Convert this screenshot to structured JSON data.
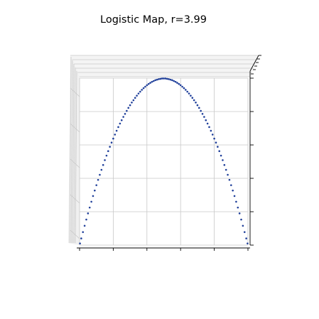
{
  "chart_data": {
    "type": "scatter",
    "projection": "3d",
    "title": "Logistic Map, r=3.99",
    "xlabel": "",
    "ylabel": "",
    "zlabel": "",
    "r": 3.99,
    "grid": true,
    "tick_labels_visible": false,
    "marker_color": "#1f3f9a",
    "axis_color": "#000000",
    "grid_color": "#c8c8c8",
    "series": [
      {
        "x": [
          0.0025,
          0.01,
          0.02,
          0.03,
          0.04,
          0.05,
          0.06,
          0.07,
          0.08,
          0.09,
          0.1,
          0.11,
          0.12,
          0.13,
          0.14,
          0.15,
          0.16,
          0.17,
          0.18,
          0.19,
          0.2,
          0.21,
          0.22,
          0.23,
          0.24,
          0.25,
          0.26,
          0.27,
          0.28,
          0.29,
          0.3,
          0.31,
          0.32,
          0.33,
          0.34,
          0.35,
          0.36,
          0.37,
          0.38,
          0.39,
          0.4,
          0.41,
          0.42,
          0.43,
          0.44,
          0.45,
          0.46,
          0.47,
          0.48,
          0.49,
          0.5,
          0.51,
          0.52,
          0.53,
          0.54,
          0.55,
          0.56,
          0.57,
          0.58,
          0.59,
          0.6,
          0.61,
          0.62,
          0.63,
          0.64,
          0.65,
          0.66,
          0.67,
          0.68,
          0.69,
          0.7,
          0.71,
          0.72,
          0.73,
          0.74,
          0.75,
          0.76,
          0.77,
          0.78,
          0.79,
          0.8,
          0.81,
          0.82,
          0.83,
          0.84,
          0.85,
          0.86,
          0.87,
          0.88,
          0.89,
          0.9,
          0.91,
          0.92,
          0.93,
          0.94,
          0.95,
          0.96,
          0.97,
          0.98,
          0.99,
          0.9975
        ],
        "y": [
          0.01,
          0.04,
          0.078,
          0.116,
          0.153,
          0.19,
          0.225,
          0.26,
          0.294,
          0.327,
          0.359,
          0.391,
          0.421,
          0.451,
          0.48,
          0.509,
          0.536,
          0.563,
          0.589,
          0.614,
          0.638,
          0.662,
          0.685,
          0.707,
          0.728,
          0.748,
          0.768,
          0.786,
          0.804,
          0.822,
          0.838,
          0.854,
          0.868,
          0.882,
          0.895,
          0.908,
          0.919,
          0.93,
          0.94,
          0.949,
          0.958,
          0.965,
          0.972,
          0.978,
          0.983,
          0.988,
          0.991,
          0.994,
          0.996,
          0.998,
          0.998,
          0.998,
          0.996,
          0.994,
          0.991,
          0.988,
          0.983,
          0.978,
          0.972,
          0.965,
          0.958,
          0.949,
          0.94,
          0.93,
          0.919,
          0.908,
          0.895,
          0.882,
          0.868,
          0.854,
          0.838,
          0.822,
          0.804,
          0.786,
          0.768,
          0.748,
          0.728,
          0.707,
          0.685,
          0.662,
          0.638,
          0.614,
          0.589,
          0.563,
          0.536,
          0.509,
          0.48,
          0.451,
          0.421,
          0.391,
          0.359,
          0.327,
          0.294,
          0.26,
          0.225,
          0.19,
          0.153,
          0.116,
          0.078,
          0.04,
          0.01
        ]
      }
    ]
  }
}
